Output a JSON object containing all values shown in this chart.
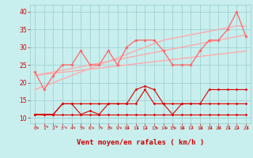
{
  "x": [
    0,
    1,
    2,
    3,
    4,
    5,
    6,
    7,
    8,
    9,
    10,
    11,
    12,
    13,
    14,
    15,
    16,
    17,
    18,
    19,
    20,
    21,
    22,
    23
  ],
  "series": [
    {
      "name": "line1_flat_dark",
      "color": "#dd0000",
      "lw": 0.8,
      "marker": "D",
      "ms": 1.5,
      "zorder": 4,
      "y": [
        11,
        11,
        11,
        11,
        11,
        11,
        11,
        11,
        11,
        11,
        11,
        11,
        11,
        11,
        11,
        11,
        11,
        11,
        11,
        11,
        11,
        11,
        11,
        11
      ]
    },
    {
      "name": "line2_wavy_dark",
      "color": "#dd0000",
      "lw": 0.8,
      "marker": "D",
      "ms": 1.5,
      "zorder": 4,
      "y": [
        11,
        11,
        11,
        14,
        14,
        11,
        12,
        11,
        14,
        14,
        14,
        18,
        19,
        18,
        14,
        11,
        14,
        14,
        14,
        18,
        18,
        18,
        18,
        18
      ]
    },
    {
      "name": "line3_wavy_dark2",
      "color": "#dd0000",
      "lw": 0.8,
      "marker": "D",
      "ms": 1.5,
      "zorder": 4,
      "y": [
        11,
        11,
        11,
        14,
        14,
        14,
        14,
        14,
        14,
        14,
        14,
        14,
        18,
        14,
        14,
        14,
        14,
        14,
        14,
        14,
        14,
        14,
        14,
        14
      ]
    },
    {
      "name": "line4_medium_pink",
      "color": "#ff6666",
      "lw": 0.9,
      "marker": "D",
      "ms": 1.8,
      "zorder": 5,
      "y": [
        23,
        18,
        22,
        25,
        25,
        29,
        25,
        25,
        29,
        25,
        30,
        32,
        32,
        32,
        29,
        25,
        25,
        25,
        29,
        32,
        32,
        35,
        40,
        33
      ]
    },
    {
      "name": "line5_light_trend1",
      "color": "#ffaaaa",
      "lw": 1.0,
      "marker": null,
      "ms": 0,
      "zorder": 3,
      "y": [
        18,
        19.0,
        20.0,
        21.0,
        22.0,
        23.0,
        24.0,
        25.0,
        26.0,
        27.0,
        28.0,
        29.0,
        30.0,
        31.0,
        32.0,
        32.5,
        33.0,
        33.5,
        34.0,
        34.5,
        35.0,
        35.5,
        36.0,
        36.0
      ]
    },
    {
      "name": "line6_light_trend2",
      "color": "#ffaaaa",
      "lw": 1.0,
      "marker": null,
      "ms": 0,
      "zorder": 3,
      "y": [
        22,
        22.5,
        23.0,
        23.5,
        24.0,
        24.5,
        25.0,
        25.5,
        26.0,
        26.5,
        27.0,
        27.5,
        28.0,
        28.5,
        29.0,
        29.5,
        30.0,
        30.5,
        31.0,
        31.5,
        32.0,
        32.5,
        33.0,
        33.5
      ]
    },
    {
      "name": "line7_light_trend3",
      "color": "#ffaaaa",
      "lw": 1.0,
      "marker": null,
      "ms": 0,
      "zorder": 3,
      "y": [
        22,
        22.3,
        22.6,
        22.9,
        23.2,
        23.5,
        23.8,
        24.1,
        24.4,
        24.7,
        25.0,
        25.3,
        25.6,
        25.9,
        26.2,
        26.5,
        26.8,
        27.1,
        27.4,
        27.7,
        28.0,
        28.3,
        28.6,
        28.9
      ]
    }
  ],
  "wind_dirs": [
    225,
    210,
    210,
    215,
    220,
    225,
    225,
    225,
    225,
    225,
    270,
    270,
    270,
    225,
    225,
    225,
    270,
    270,
    270,
    270,
    270,
    270,
    270,
    270
  ],
  "xlabel": "Vent moyen/en rafales ( km/h )",
  "xlim": [
    -0.5,
    23.5
  ],
  "ylim": [
    8.5,
    42
  ],
  "yticks": [
    10,
    15,
    20,
    25,
    30,
    35,
    40
  ],
  "xticks": [
    0,
    1,
    2,
    3,
    4,
    5,
    6,
    7,
    8,
    9,
    10,
    11,
    12,
    13,
    14,
    15,
    16,
    17,
    18,
    19,
    20,
    21,
    22,
    23
  ],
  "bg_color": "#c8eeee",
  "grid_color": "#99cccc",
  "line_color": "#cc0000",
  "label_color": "#cc0000"
}
